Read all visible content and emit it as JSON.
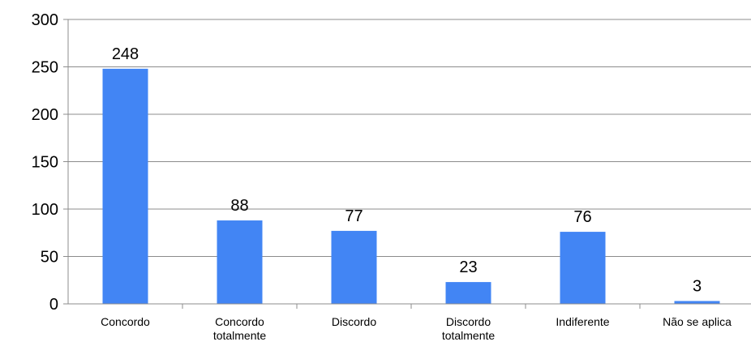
{
  "chart_data": {
    "type": "bar",
    "categories": [
      [
        "Concordo"
      ],
      [
        "Concordo",
        "totalmente"
      ],
      [
        "Discordo"
      ],
      [
        "Discordo",
        "totalmente"
      ],
      [
        "Indiferente"
      ],
      [
        "Não se aplica"
      ]
    ],
    "values": [
      248,
      88,
      77,
      23,
      76,
      3
    ],
    "title": "",
    "xlabel": "",
    "ylabel": "",
    "ylim": [
      0,
      300
    ],
    "yticks": [
      0,
      50,
      100,
      150,
      200,
      250,
      300
    ],
    "grid": true,
    "legend": "none",
    "data_labels": true,
    "bar_color": "#4285F4"
  }
}
